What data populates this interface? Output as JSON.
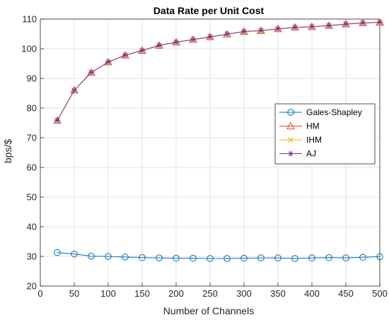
{
  "chart_data": {
    "type": "line",
    "title": "Data Rate per Unit Cost",
    "xlabel": "Number of Channels",
    "ylabel": "bps/$",
    "xlim": [
      0,
      500
    ],
    "ylim": [
      20,
      110
    ],
    "xticks": [
      0,
      50,
      100,
      150,
      200,
      250,
      300,
      350,
      400,
      450,
      500
    ],
    "yticks": [
      20,
      30,
      40,
      50,
      60,
      70,
      80,
      90,
      100,
      110
    ],
    "grid": true,
    "legend_position": "right",
    "x": [
      25,
      50,
      75,
      100,
      125,
      150,
      175,
      200,
      225,
      250,
      275,
      300,
      325,
      350,
      375,
      400,
      425,
      450,
      475,
      500
    ],
    "series": [
      {
        "name": "Gales-Shapley",
        "color": "#0072BD",
        "marker": "circle",
        "values": [
          31.3,
          30.8,
          30.1,
          30.0,
          29.8,
          29.6,
          29.5,
          29.4,
          29.4,
          29.3,
          29.3,
          29.4,
          29.5,
          29.5,
          29.3,
          29.5,
          29.6,
          29.5,
          29.7,
          29.9
        ]
      },
      {
        "name": "HM",
        "color": "#D95319",
        "marker": "triangle",
        "values": [
          75.8,
          86.0,
          92.0,
          95.5,
          97.8,
          99.4,
          101.1,
          102.2,
          103.1,
          104.0,
          104.9,
          105.8,
          106.1,
          106.7,
          107.2,
          107.4,
          107.8,
          108.3,
          108.7,
          108.9
        ]
      },
      {
        "name": "IHM",
        "color": "#EDB120",
        "marker": "x",
        "values": [
          75.8,
          86.0,
          92.0,
          95.5,
          97.8,
          99.4,
          101.1,
          102.2,
          103.1,
          104.0,
          104.9,
          105.8,
          106.1,
          106.7,
          107.2,
          107.4,
          107.8,
          108.3,
          108.7,
          108.9
        ]
      },
      {
        "name": "AJ",
        "color": "#7E2F8E",
        "marker": "star",
        "values": [
          75.8,
          86.0,
          92.0,
          95.5,
          97.8,
          99.4,
          101.1,
          102.2,
          103.1,
          104.0,
          104.9,
          105.8,
          106.1,
          106.7,
          107.2,
          107.4,
          107.8,
          108.3,
          108.7,
          108.9
        ]
      }
    ]
  }
}
